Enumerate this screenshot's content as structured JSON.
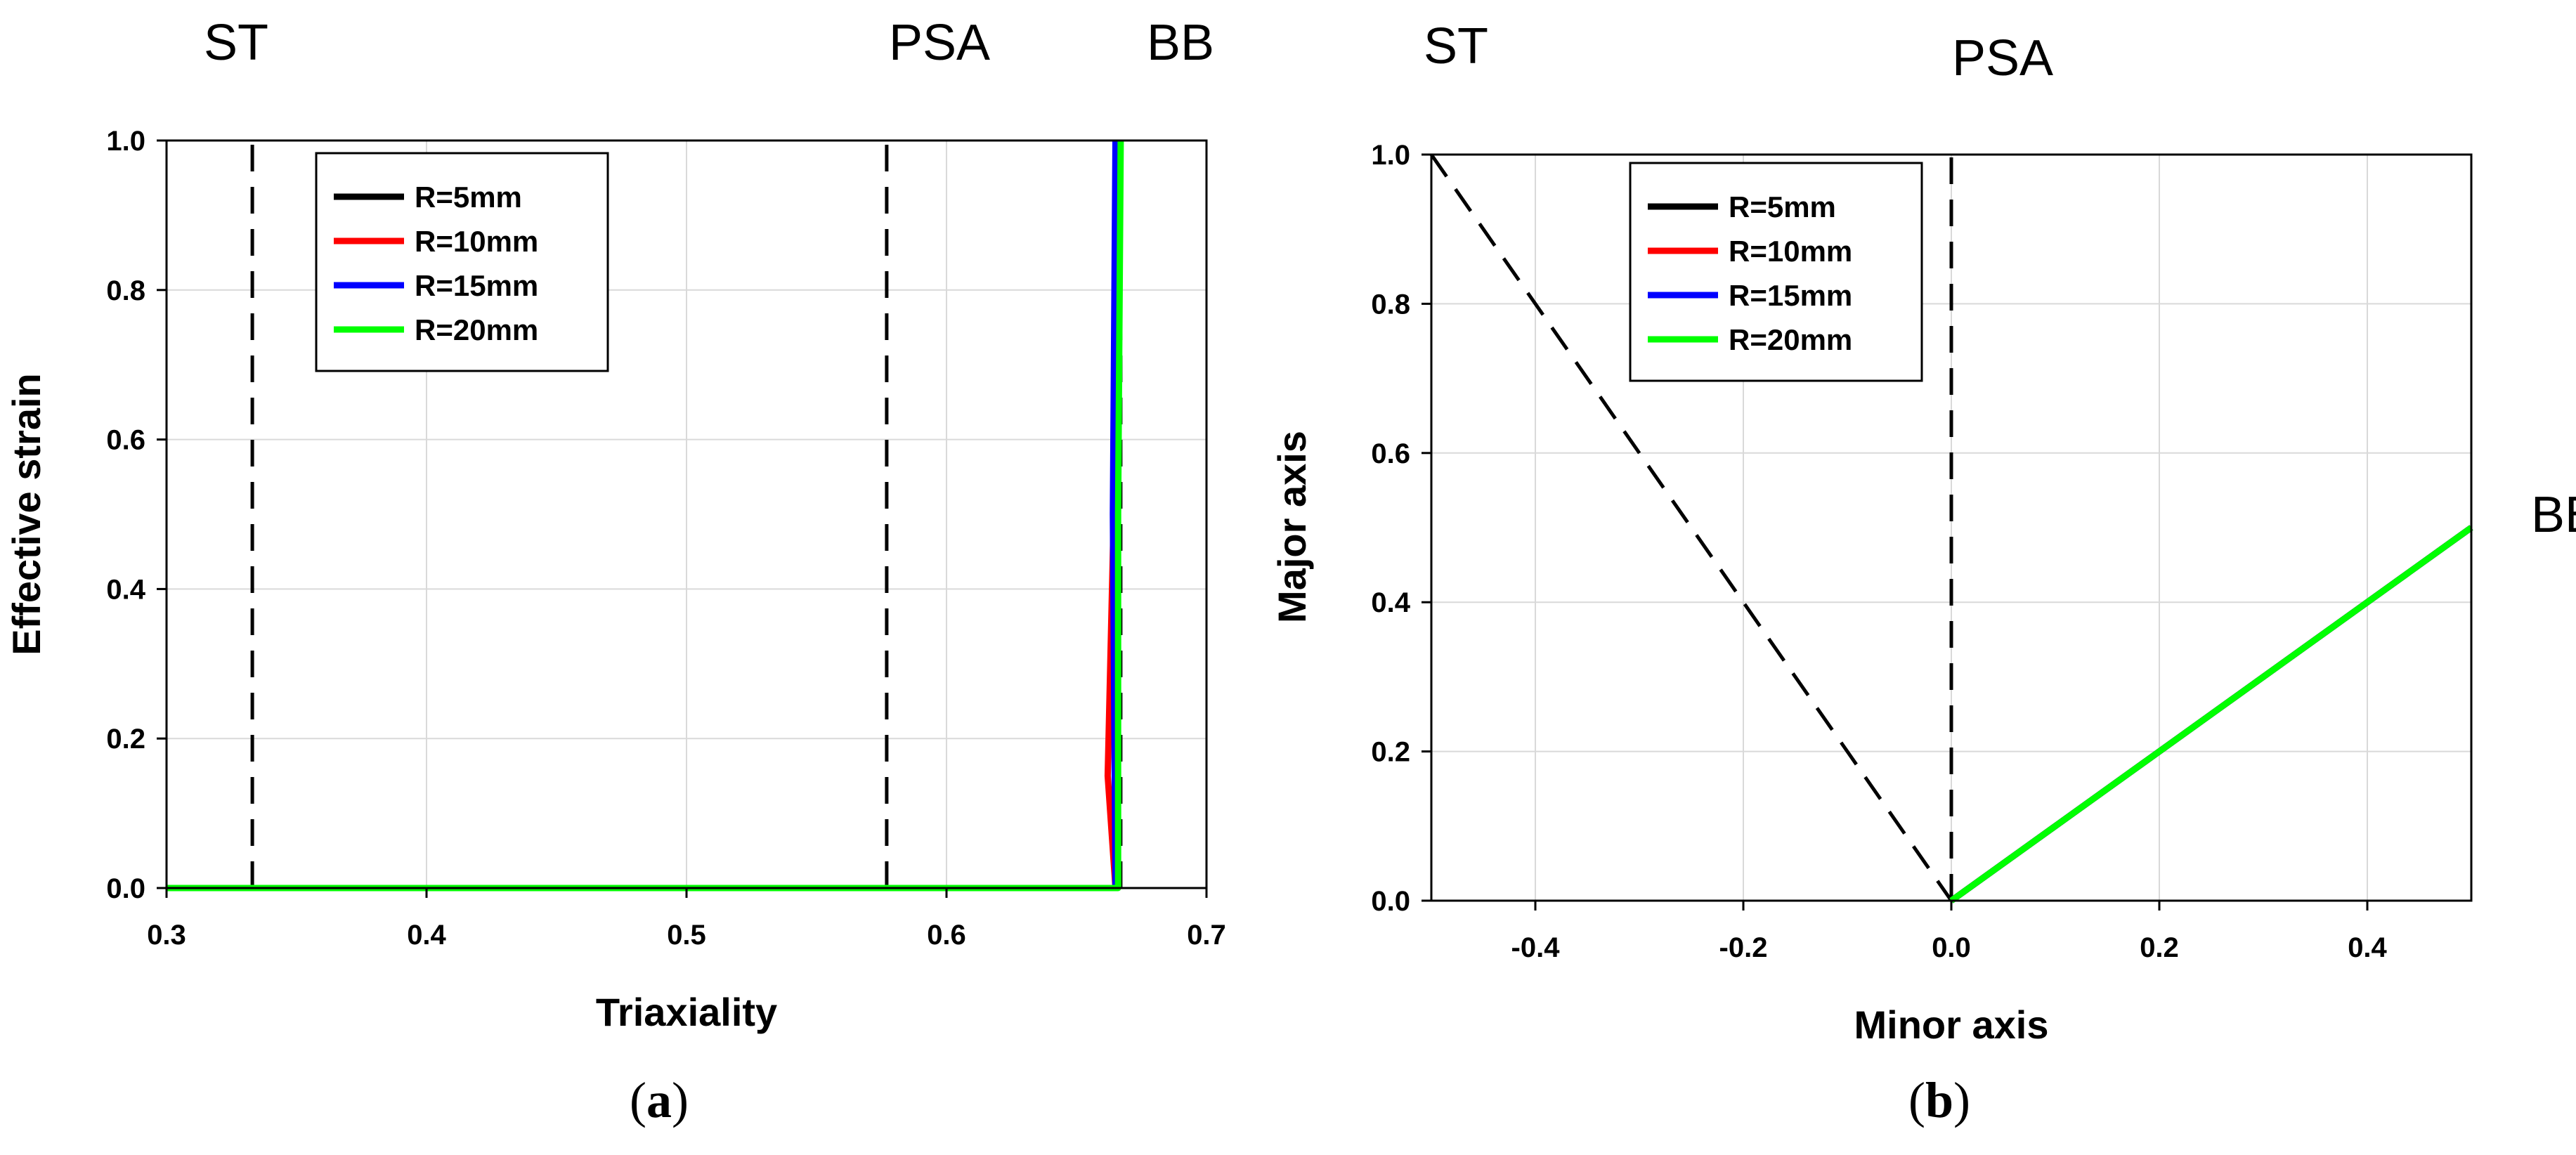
{
  "chart_data": [
    {
      "id": "a",
      "type": "line",
      "caption": [
        "(",
        "a",
        ")"
      ],
      "xlabel": "Triaxiality",
      "ylabel": "Effective strain",
      "xlim": [
        0.3,
        0.7
      ],
      "ylim": [
        0.0,
        1.0
      ],
      "x_ticks": [
        0.3,
        0.4,
        0.5,
        0.6,
        0.7
      ],
      "x_tick_labels": [
        "0.3",
        "0.4",
        "0.5",
        "0.6",
        "0.7"
      ],
      "y_ticks": [
        0.0,
        0.2,
        0.4,
        0.6,
        0.8,
        1.0
      ],
      "y_tick_labels": [
        "0.0",
        "0.2",
        "0.4",
        "0.6",
        "0.8",
        "1.0"
      ],
      "grid": true,
      "legend_position": "top-left",
      "annotations": [
        {
          "text": "ST",
          "x": 0.333
        },
        {
          "text": "PSA",
          "x": 0.577
        },
        {
          "text": "BB",
          "x": 0.667
        }
      ],
      "reference_lines": [
        {
          "name": "ST",
          "x": [
            0.333,
            0.333
          ],
          "y": [
            0,
            1.0
          ],
          "style": "dashed"
        },
        {
          "name": "PSA",
          "x": [
            0.577,
            0.577
          ],
          "y": [
            0,
            1.0
          ],
          "style": "dashed"
        },
        {
          "name": "BB",
          "x": [
            0.667,
            0.667
          ],
          "y": [
            0,
            1.0
          ],
          "style": "dashed"
        }
      ],
      "series": [
        {
          "name": "R=5mm",
          "color": "#000000",
          "x": [
            0.3,
            0.665,
            0.665,
            0.666
          ],
          "y": [
            0,
            0,
            0.5,
            1.0
          ]
        },
        {
          "name": "R=10mm",
          "color": "#ff0000",
          "x": [
            0.3,
            0.665,
            0.662,
            0.663,
            0.665,
            0.666
          ],
          "y": [
            0,
            0,
            0.15,
            0.3,
            0.6,
            1.0
          ]
        },
        {
          "name": "R=15mm",
          "color": "#0000ff",
          "x": [
            0.3,
            0.665,
            0.664,
            0.665
          ],
          "y": [
            0,
            0,
            0.5,
            1.0
          ]
        },
        {
          "name": "R=20mm",
          "color": "#00ff00",
          "x": [
            0.3,
            0.666,
            0.666,
            0.667
          ],
          "y": [
            0,
            0,
            0.5,
            1.0
          ]
        }
      ]
    },
    {
      "id": "b",
      "type": "line",
      "caption": [
        "(",
        "b",
        ")"
      ],
      "xlabel": "Minor axis",
      "ylabel": "Major axis",
      "xlim": [
        -0.5,
        0.5
      ],
      "ylim": [
        0.0,
        1.0
      ],
      "x_ticks": [
        -0.4,
        -0.2,
        0.0,
        0.2,
        0.4
      ],
      "x_tick_labels": [
        "-0.4",
        "-0.2",
        "0.0",
        "0.2",
        "0.4"
      ],
      "y_ticks": [
        0.0,
        0.2,
        0.4,
        0.6,
        0.8,
        1.0
      ],
      "y_tick_labels": [
        "0.0",
        "0.2",
        "0.4",
        "0.6",
        "0.8",
        "1.0"
      ],
      "grid": true,
      "legend_position": "top-center",
      "annotations": [
        {
          "text": "ST",
          "x": -0.5,
          "y": 1.0
        },
        {
          "text": "PSA",
          "x": 0.0,
          "y": 1.0
        },
        {
          "text": "BB",
          "x": 0.5,
          "y": 0.5
        }
      ],
      "reference_lines": [
        {
          "name": "ST",
          "x": [
            -0.5,
            0.0
          ],
          "y": [
            1.0,
            0.0
          ],
          "style": "dashed"
        },
        {
          "name": "PSA",
          "x": [
            0.0,
            0.0
          ],
          "y": [
            0.0,
            1.0
          ],
          "style": "dashed"
        }
      ],
      "series": [
        {
          "name": "R=5mm",
          "color": "#000000",
          "x": [
            0.0,
            0.5
          ],
          "y": [
            0.0,
            0.5
          ]
        },
        {
          "name": "R=10mm",
          "color": "#ff0000",
          "x": [
            0.0,
            0.5
          ],
          "y": [
            0.0,
            0.5
          ]
        },
        {
          "name": "R=15mm",
          "color": "#0000ff",
          "x": [
            0.0,
            0.5
          ],
          "y": [
            0.0,
            0.5
          ]
        },
        {
          "name": "R=20mm",
          "color": "#00ff00",
          "x": [
            0.0,
            0.5
          ],
          "y": [
            0.0,
            0.5
          ]
        }
      ]
    }
  ]
}
